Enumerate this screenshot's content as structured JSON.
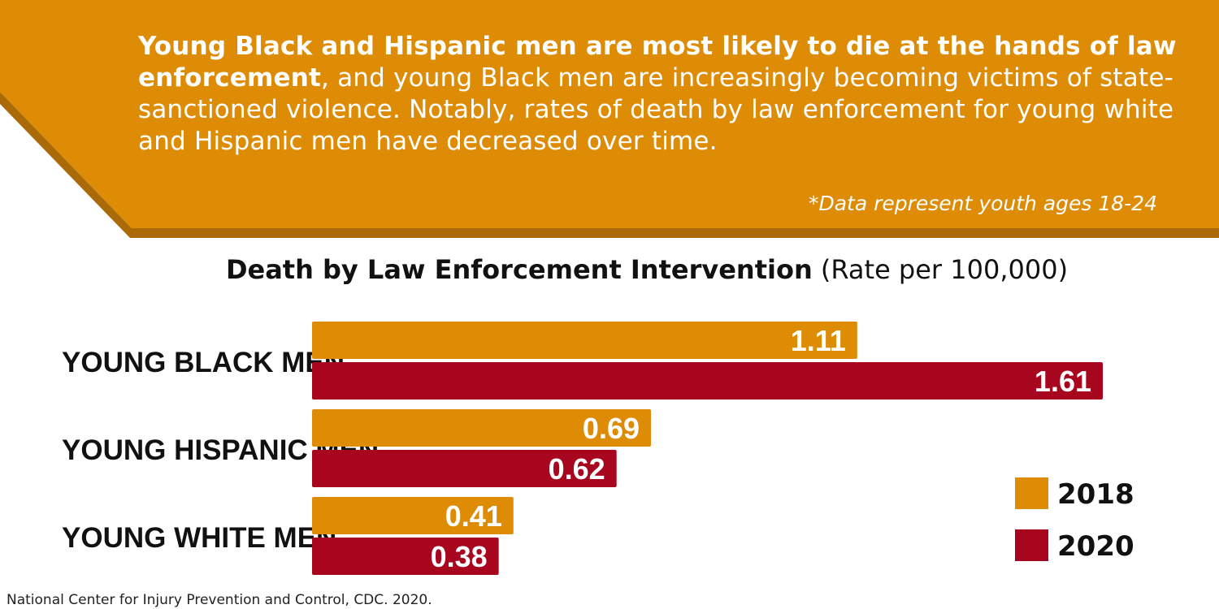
{
  "banner": {
    "intro_bold_1": "Young Black and Hispanic men are most likely to die at the hands of law enforcement",
    "intro_rest": ", and young Black men are increasingly becoming victims of state-sanctioned violence. Notably, rates of death by law enforcement for young white and Hispanic men have decreased over time.",
    "footnote": "*Data represent youth ages 18-24"
  },
  "colors": {
    "banner": "#DE8C06",
    "banner_shadow": "#A96A07",
    "series_2018": "#DE8C06",
    "series_2020": "#A8051E"
  },
  "chart_data": {
    "type": "bar",
    "orientation": "horizontal",
    "title": "Death by Law Enforcement Intervention",
    "subtitle": "(Rate per 100,000)",
    "categories": [
      "YOUNG BLACK MEN",
      "YOUNG HISPANIC MEN",
      "YOUNG WHITE MEN"
    ],
    "series": [
      {
        "name": "2018",
        "values": [
          1.11,
          0.69,
          0.41
        ],
        "color": "#DE8C06"
      },
      {
        "name": "2020",
        "values": [
          1.61,
          0.62,
          0.38
        ],
        "color": "#A8051E"
      }
    ],
    "data_labels": [
      [
        "1.11",
        "0.69",
        "0.41"
      ],
      [
        "1.61",
        "0.62",
        "0.38"
      ]
    ],
    "xlim": [
      0,
      1.61
    ],
    "grid": false,
    "legend_position": "right"
  },
  "source": "National Center for Injury Prevention and Control, CDC. 2020."
}
